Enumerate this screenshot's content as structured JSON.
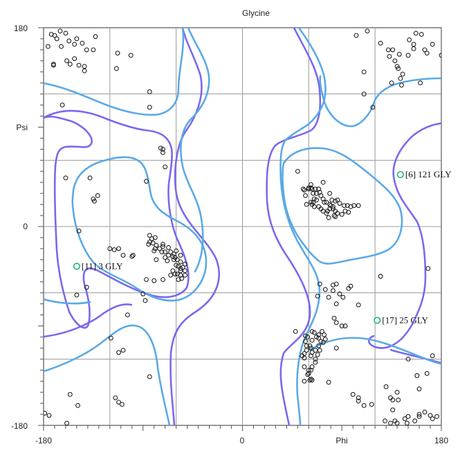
{
  "chart_data": {
    "type": "scatter",
    "title": "Glycine",
    "xlabel": "Phi",
    "ylabel": "Psi",
    "xlim": [
      -180,
      180
    ],
    "ylim": [
      -180,
      180
    ],
    "grid": true,
    "x_tick_labels": [
      "-180",
      "0",
      "180"
    ],
    "y_tick_labels": [
      "180",
      "0",
      "-180"
    ],
    "colors": {
      "point": "#222222",
      "outlier": "#22b573",
      "contour_allowed": "#7b68ee",
      "contour_favored": "#5aa9e6",
      "grid": "#9a9a9a",
      "frame": "#555555"
    },
    "outliers": [
      {
        "label": "[6]",
        "residue": "121 GLY",
        "x": 143,
        "y": 47
      },
      {
        "label": "[11]",
        "residue": "3 GLY",
        "x": -150,
        "y": -36
      },
      {
        "label": "[17]",
        "residue": "25 GLY",
        "x": 122,
        "y": -85
      }
    ],
    "points": [
      [
        -173,
        174
      ],
      [
        -170,
        173
      ],
      [
        -165,
        177
      ],
      [
        -160,
        175
      ],
      [
        -176,
        163
      ],
      [
        -168,
        170
      ],
      [
        -157,
        168
      ],
      [
        -152,
        165
      ],
      [
        -164,
        163
      ],
      [
        -150,
        170
      ],
      [
        -145,
        166
      ],
      [
        -141,
        160
      ],
      [
        -133,
        172
      ],
      [
        -135,
        160
      ],
      [
        -152,
        152
      ],
      [
        -171,
        147
      ],
      [
        -171,
        146
      ],
      [
        -148,
        146
      ],
      [
        -159,
        150
      ],
      [
        -156,
        147
      ],
      [
        -143,
        145
      ],
      [
        -143,
        141
      ],
      [
        -113,
        157
      ],
      [
        -101,
        155
      ],
      [
        -114,
        143
      ],
      [
        -163,
        110
      ],
      [
        -84,
        122
      ],
      [
        -84,
        108
      ],
      [
        -74,
        71
      ],
      [
        -72,
        67
      ],
      [
        -70,
        54
      ],
      [
        -72,
        70
      ],
      [
        -138,
        44
      ],
      [
        -160,
        44
      ],
      [
        -135,
        25
      ],
      [
        -134,
        23
      ],
      [
        -131,
        28
      ],
      [
        -87,
        41
      ],
      [
        -148,
        -4
      ],
      [
        -120,
        -20
      ],
      [
        -112,
        -20
      ],
      [
        -116,
        -21
      ],
      [
        -108,
        -26
      ],
      [
        -84,
        -8
      ],
      [
        -82,
        -11
      ],
      [
        -84,
        -14
      ],
      [
        -79,
        -10
      ],
      [
        -81,
        -15
      ],
      [
        -78,
        -17
      ],
      [
        -85,
        -16
      ],
      [
        -79,
        -20
      ],
      [
        -75,
        -20
      ],
      [
        -72,
        -18
      ],
      [
        -73,
        -23
      ],
      [
        -70,
        -23
      ],
      [
        -65,
        -23
      ],
      [
        -67,
        -19
      ],
      [
        -70,
        -28
      ],
      [
        -68,
        -31
      ],
      [
        -63,
        -27
      ],
      [
        -61,
        -28
      ],
      [
        -62,
        -30
      ],
      [
        -59,
        -30
      ],
      [
        -56,
        -26
      ],
      [
        -60,
        -35
      ],
      [
        -58,
        -36
      ],
      [
        -56,
        -38
      ],
      [
        -63,
        -40
      ],
      [
        -61,
        -43
      ],
      [
        -65,
        -44
      ],
      [
        -59,
        -43
      ],
      [
        -56,
        -44
      ],
      [
        -56,
        -32
      ],
      [
        -54,
        -37
      ],
      [
        -56,
        -40
      ],
      [
        -58,
        -48
      ],
      [
        -55,
        -47
      ],
      [
        -52,
        -34
      ],
      [
        -52,
        -40
      ],
      [
        -52,
        -44
      ],
      [
        -60,
        -22
      ],
      [
        -62,
        -25
      ],
      [
        -67,
        -26
      ],
      [
        -72,
        -16
      ],
      [
        -80,
        -22
      ],
      [
        -100,
        -27
      ],
      [
        -99,
        -26
      ],
      [
        -78,
        -30
      ],
      [
        -87,
        -48
      ],
      [
        -90,
        -61
      ],
      [
        -80,
        -49
      ],
      [
        -72,
        -48
      ],
      [
        -141,
        -55
      ],
      [
        -150,
        -62
      ],
      [
        -88,
        -67
      ],
      [
        -104,
        -80
      ],
      [
        -119,
        -101
      ],
      [
        -84,
        -136
      ],
      [
        -108,
        -112
      ],
      [
        -112,
        -114
      ],
      [
        -156,
        -152
      ],
      [
        -115,
        -155
      ],
      [
        -112,
        -159
      ],
      [
        -109,
        -161
      ],
      [
        -179,
        -169
      ],
      [
        -175,
        -171
      ],
      [
        -149,
        -162
      ],
      [
        -159,
        -178
      ],
      [
        50,
        50
      ],
      [
        55,
        34
      ],
      [
        56,
        33
      ],
      [
        60,
        34
      ],
      [
        62,
        35
      ],
      [
        63,
        34
      ],
      [
        57,
        28
      ],
      [
        58,
        20
      ],
      [
        62,
        22
      ],
      [
        64,
        22
      ],
      [
        63,
        20
      ],
      [
        65,
        18
      ],
      [
        67,
        30
      ],
      [
        69,
        34
      ],
      [
        70,
        31
      ],
      [
        71,
        28
      ],
      [
        73,
        25
      ],
      [
        74,
        22
      ],
      [
        76,
        22
      ],
      [
        77,
        14
      ],
      [
        79,
        20
      ],
      [
        80,
        19
      ],
      [
        82,
        18
      ],
      [
        82,
        16
      ],
      [
        84,
        14
      ],
      [
        86,
        12
      ],
      [
        76,
        12
      ],
      [
        73,
        14
      ],
      [
        71,
        16
      ],
      [
        69,
        18
      ],
      [
        67,
        24
      ],
      [
        65,
        25
      ],
      [
        64,
        30
      ],
      [
        60,
        35
      ],
      [
        62,
        38
      ],
      [
        66,
        34
      ],
      [
        69,
        34
      ],
      [
        73,
        40
      ],
      [
        79,
        30
      ],
      [
        81,
        24
      ],
      [
        84,
        23
      ],
      [
        86,
        24
      ],
      [
        88,
        21
      ],
      [
        92,
        19
      ],
      [
        95,
        19
      ],
      [
        98,
        18
      ],
      [
        101,
        19
      ],
      [
        105,
        19
      ],
      [
        93,
        14
      ],
      [
        83,
        10
      ],
      [
        78,
        8
      ],
      [
        79,
        16
      ],
      [
        96,
        13
      ],
      [
        90,
        11
      ],
      [
        84,
        9
      ],
      [
        132,
        160
      ],
      [
        136,
        160
      ],
      [
        125,
        166
      ],
      [
        133,
        154
      ],
      [
        138,
        150
      ],
      [
        140,
        145
      ],
      [
        141,
        143
      ],
      [
        145,
        138
      ],
      [
        150,
        155
      ],
      [
        151,
        169
      ],
      [
        155,
        165
      ],
      [
        157,
        175
      ],
      [
        155,
        161
      ],
      [
        162,
        174
      ],
      [
        165,
        160
      ],
      [
        167,
        157
      ],
      [
        172,
        165
      ],
      [
        180,
        155
      ],
      [
        142,
        156
      ],
      [
        103,
        173
      ],
      [
        113,
        177
      ],
      [
        110,
        140
      ],
      [
        135,
        130
      ],
      [
        143,
        134
      ],
      [
        144,
        128
      ],
      [
        161,
        130
      ],
      [
        110,
        120
      ],
      [
        118,
        108
      ],
      [
        168,
        -38
      ],
      [
        125,
        -45
      ],
      [
        85,
        -52
      ],
      [
        82,
        -53
      ],
      [
        82,
        -58
      ],
      [
        78,
        -64
      ],
      [
        75,
        -57
      ],
      [
        68,
        -63
      ],
      [
        70,
        -52
      ],
      [
        88,
        -61
      ],
      [
        91,
        -64
      ],
      [
        96,
        -56
      ],
      [
        98,
        -54
      ],
      [
        85,
        -70
      ],
      [
        105,
        -71
      ],
      [
        83,
        -83
      ],
      [
        63,
        -95
      ],
      [
        48,
        -95
      ],
      [
        65,
        -96
      ],
      [
        67,
        -100
      ],
      [
        63,
        -103
      ],
      [
        61,
        -108
      ],
      [
        62,
        -110
      ],
      [
        58,
        -112
      ],
      [
        56,
        -115
      ],
      [
        63,
        -114
      ],
      [
        66,
        -112
      ],
      [
        69,
        -108
      ],
      [
        71,
        -104
      ],
      [
        69,
        -98
      ],
      [
        72,
        -95
      ],
      [
        74,
        -98
      ],
      [
        73,
        -105
      ],
      [
        70,
        -112
      ],
      [
        68,
        -116
      ],
      [
        66,
        -123
      ],
      [
        63,
        -127
      ],
      [
        62,
        -130
      ],
      [
        60,
        -133
      ],
      [
        59,
        -134
      ],
      [
        56,
        -127
      ],
      [
        62,
        -117
      ],
      [
        66,
        -120
      ],
      [
        57,
        -104
      ],
      [
        59,
        -100
      ],
      [
        69,
        -101
      ],
      [
        75,
        -102
      ],
      [
        56,
        -119
      ],
      [
        62,
        -138
      ],
      [
        63,
        -139
      ],
      [
        61,
        -139
      ],
      [
        85,
        -110
      ],
      [
        85,
        -87
      ],
      [
        90,
        -90
      ],
      [
        93,
        -90
      ],
      [
        54,
        -117
      ],
      [
        57,
        -99
      ],
      [
        58,
        -108
      ],
      [
        60,
        -130
      ],
      [
        150,
        -120
      ],
      [
        158,
        -135
      ],
      [
        167,
        -133
      ],
      [
        172,
        -117
      ],
      [
        160,
        -147
      ],
      [
        130,
        -145
      ],
      [
        134,
        -155
      ],
      [
        136,
        -157
      ],
      [
        141,
        -157
      ],
      [
        136,
        -166
      ],
      [
        150,
        -172
      ],
      [
        129,
        -176
      ],
      [
        138,
        -176
      ],
      [
        147,
        -174
      ],
      [
        160,
        -170
      ],
      [
        165,
        -168
      ],
      [
        170,
        -171
      ],
      [
        176,
        -172
      ],
      [
        172,
        -174
      ],
      [
        134,
        -178
      ],
      [
        140,
        -178
      ],
      [
        149,
        -178
      ],
      [
        156,
        -176
      ],
      [
        160,
        -172
      ],
      [
        140,
        -150
      ],
      [
        105,
        -155
      ],
      [
        105,
        -158
      ],
      [
        100,
        -152
      ],
      [
        117,
        -161
      ],
      [
        110,
        -162
      ],
      [
        78,
        -141
      ],
      [
        56,
        -140
      ]
    ]
  }
}
